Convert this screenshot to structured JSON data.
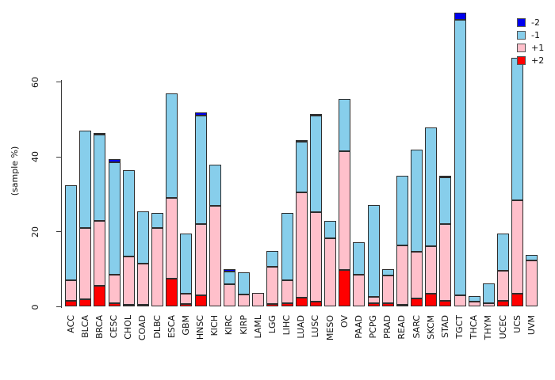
{
  "chart_data": {
    "type": "bar",
    "stacked": true,
    "title": "",
    "ylabel": "(sample %)",
    "yticks": [
      0,
      20,
      40,
      60
    ],
    "ylim": [
      0,
      80
    ],
    "grid": false,
    "legend_position": "top-right",
    "categories": [
      "ACC",
      "BLCA",
      "BRCA",
      "CESC",
      "CHOL",
      "COAD",
      "DLBC",
      "ESCA",
      "GBM",
      "HNSC",
      "KICH",
      "KIRC",
      "KIRP",
      "LAML",
      "LGG",
      "LIHC",
      "LUAD",
      "LUSC",
      "MESO",
      "OV",
      "PAAD",
      "PCPG",
      "PRAD",
      "READ",
      "SARC",
      "SKCM",
      "STAD",
      "TGCT",
      "THCA",
      "THYM",
      "UCEC",
      "UCS",
      "UVM"
    ],
    "series": [
      {
        "name": "+2",
        "color": "#FF0000",
        "values": [
          1.5,
          2,
          5.5,
          1,
          0.5,
          0.5,
          0,
          7.5,
          0.7,
          3,
          0,
          0,
          0,
          0,
          0.7,
          1,
          2.5,
          1.3,
          0,
          9.8,
          0,
          1,
          1,
          0.5,
          2.2,
          3.4,
          1.6,
          0,
          0,
          0,
          1.6,
          3.5,
          0
        ]
      },
      {
        "name": "+1",
        "color": "#FFC0CB",
        "values": [
          5.5,
          19,
          17.5,
          7.5,
          13,
          11,
          21,
          21.5,
          2.8,
          19,
          27,
          6,
          3.3,
          3.7,
          10,
          6,
          28,
          24,
          18.3,
          31.7,
          8.5,
          1.7,
          7.4,
          15.8,
          12.4,
          12.8,
          20.6,
          3,
          1.3,
          1,
          8,
          25,
          12.4
        ]
      },
      {
        "name": "-1",
        "color": "#87CEEB",
        "values": [
          25.5,
          26,
          23,
          30,
          23,
          14,
          4,
          28,
          16,
          29,
          11,
          3.5,
          6,
          0,
          4.3,
          18,
          13.5,
          25.7,
          4.7,
          14,
          8.7,
          24.5,
          1.7,
          18.7,
          27.4,
          31.8,
          12.4,
          73.7,
          1.5,
          5.3,
          10,
          38,
          1.4
        ]
      },
      {
        "name": "-2",
        "color": "#0000EE",
        "values": [
          0,
          0,
          0.5,
          1,
          0,
          0,
          0,
          0,
          0,
          1,
          0,
          0.6,
          0,
          0,
          0,
          0,
          0.6,
          0.5,
          0,
          0,
          0,
          0,
          0,
          0,
          0,
          0,
          0.4,
          1.8,
          0,
          0,
          0,
          0,
          0
        ]
      }
    ],
    "totals": [
      32.5,
      47,
      46.5,
      39.5,
      36.5,
      25.5,
      25,
      57,
      19.5,
      52,
      38,
      10.1,
      9.3,
      3.7,
      15,
      25,
      44.6,
      51.5,
      23,
      55.5,
      17.2,
      27.2,
      10.1,
      35,
      42,
      48,
      35,
      78.5,
      2.8,
      6.3,
      19.6,
      66.5,
      13.8
    ],
    "legend": [
      {
        "label": "-2",
        "color": "#0000EE"
      },
      {
        "label": "-1",
        "color": "#87CEEB"
      },
      {
        "label": "+1",
        "color": "#FFC0CB"
      },
      {
        "label": "+2",
        "color": "#FF0000"
      }
    ]
  }
}
